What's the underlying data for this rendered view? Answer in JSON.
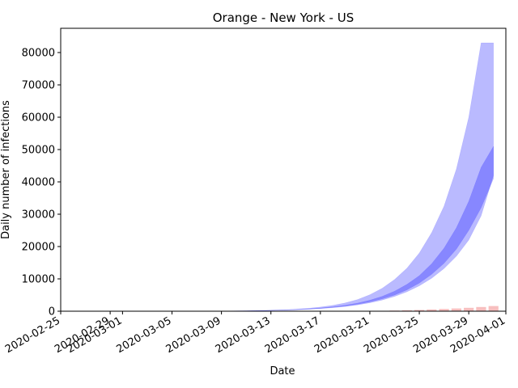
{
  "chart_data": {
    "type": "area",
    "title": "Orange - New York - US",
    "xlabel": "Date",
    "ylabel": "Daily number of infections",
    "x_ticks": [
      "2020-02-25",
      "2020-02-29",
      "2020-03-01",
      "2020-03-05",
      "2020-03-09",
      "2020-03-13",
      "2020-03-17",
      "2020-03-21",
      "2020-03-25",
      "2020-03-29",
      "2020-04-01"
    ],
    "y_ticks": [
      0,
      10000,
      20000,
      30000,
      40000,
      50000,
      60000,
      70000,
      80000
    ],
    "xlim": [
      "2020-02-25",
      "2020-04-01"
    ],
    "ylim": [
      0,
      87500
    ],
    "dates": [
      "2020-02-27",
      "2020-02-28",
      "2020-02-29",
      "2020-03-01",
      "2020-03-02",
      "2020-03-03",
      "2020-03-04",
      "2020-03-05",
      "2020-03-06",
      "2020-03-07",
      "2020-03-08",
      "2020-03-09",
      "2020-03-10",
      "2020-03-11",
      "2020-03-12",
      "2020-03-13",
      "2020-03-14",
      "2020-03-15",
      "2020-03-16",
      "2020-03-17",
      "2020-03-18",
      "2020-03-19",
      "2020-03-20",
      "2020-03-21",
      "2020-03-22",
      "2020-03-23",
      "2020-03-24",
      "2020-03-25",
      "2020-03-26",
      "2020-03-27",
      "2020-03-28",
      "2020-03-29",
      "2020-03-30",
      "2020-03-31"
    ],
    "series": [
      {
        "name": "outer-band",
        "color": "#0000ff",
        "opacity": 0.27,
        "lower": [
          0,
          0,
          0,
          0,
          0,
          1,
          2,
          4,
          8,
          15,
          25,
          40,
          65,
          100,
          150,
          220,
          310,
          430,
          590,
          800,
          1080,
          1450,
          1950,
          2600,
          3450,
          4550,
          6000,
          7850,
          10200,
          13200,
          17000,
          22000,
          29500,
          42000
        ],
        "upper": [
          0,
          0,
          0,
          0,
          0,
          1,
          2,
          4,
          8,
          15,
          26,
          45,
          80,
          130,
          200,
          300,
          440,
          630,
          900,
          1280,
          1800,
          2550,
          3600,
          5100,
          7100,
          9800,
          13300,
          18000,
          24300,
          32500,
          44000,
          60000,
          83000,
          83000
        ]
      },
      {
        "name": "inner-band",
        "color": "#0000ff",
        "opacity": 0.27,
        "lower": [
          0,
          0,
          0,
          0,
          0,
          1,
          2,
          4,
          8,
          15,
          25,
          42,
          70,
          110,
          165,
          240,
          340,
          470,
          650,
          880,
          1190,
          1600,
          2150,
          2870,
          3800,
          5000,
          6600,
          8700,
          11400,
          14800,
          19200,
          25000,
          32000,
          41000
        ],
        "upper": [
          0,
          0,
          0,
          0,
          0,
          1,
          2,
          4,
          8,
          15,
          26,
          43,
          72,
          115,
          175,
          260,
          370,
          520,
          720,
          990,
          1350,
          1850,
          2500,
          3400,
          4600,
          6200,
          8300,
          11000,
          14700,
          19500,
          25800,
          34000,
          44500,
          51000
        ]
      }
    ],
    "bars": {
      "name": "observed-cases",
      "color": "#f08080",
      "opacity": 0.5,
      "dates": [
        "2020-02-27",
        "2020-02-28",
        "2020-02-29",
        "2020-03-01",
        "2020-03-02",
        "2020-03-03",
        "2020-03-04",
        "2020-03-05",
        "2020-03-06",
        "2020-03-07",
        "2020-03-08",
        "2020-03-09",
        "2020-03-10",
        "2020-03-11",
        "2020-03-12",
        "2020-03-13",
        "2020-03-14",
        "2020-03-15",
        "2020-03-16",
        "2020-03-17",
        "2020-03-18",
        "2020-03-19",
        "2020-03-20",
        "2020-03-21",
        "2020-03-22",
        "2020-03-23",
        "2020-03-24",
        "2020-03-25",
        "2020-03-26",
        "2020-03-27",
        "2020-03-28",
        "2020-03-29",
        "2020-03-30",
        "2020-03-31"
      ],
      "values": [
        0,
        0,
        0,
        0,
        0,
        0,
        0,
        0,
        0,
        0,
        0,
        0,
        0,
        0,
        0,
        0,
        0,
        0,
        0,
        0,
        0,
        0,
        0,
        0,
        100,
        200,
        300,
        400,
        550,
        700,
        850,
        1050,
        1300,
        1600
      ]
    }
  }
}
